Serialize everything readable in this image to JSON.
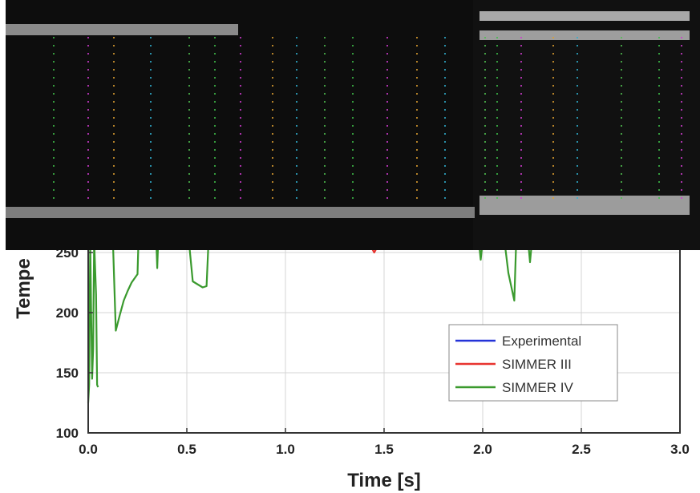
{
  "chart_data": {
    "type": "line",
    "title": "",
    "xlabel": "Time [s]",
    "ylabel": "Tempe",
    "xlim": [
      0.0,
      3.0
    ],
    "ylim": [
      100,
      300
    ],
    "grid": true,
    "legend_position": "bottom-right",
    "x_ticks": [
      "0.0",
      "0.5",
      "1.0",
      "1.5",
      "2.0",
      "2.5",
      "3.0"
    ],
    "y_ticks": [
      "100",
      "150",
      "200",
      "250"
    ],
    "series": [
      {
        "name": "Experimental",
        "color": "#2433d8",
        "x": [],
        "y": []
      },
      {
        "name": "SIMMER III",
        "color": "#e8332f",
        "x": [
          1.44,
          1.45,
          1.46
        ],
        "y": [
          253,
          250,
          253
        ]
      },
      {
        "name": "SIMMER IV",
        "color": "#3a9a2e",
        "segments": [
          {
            "x": [
              0.0,
              0.005,
              0.01,
              0.015,
              0.02,
              0.025,
              0.03,
              0.04,
              0.045,
              0.05
            ],
            "y": [
              125,
              140,
              260,
              200,
              145,
              170,
              260,
              215,
              140,
              138
            ]
          },
          {
            "x": [
              0.125,
              0.14,
              0.16,
              0.18,
              0.2,
              0.22,
              0.25,
              0.255
            ],
            "y": [
              260,
              185,
              198,
              210,
              218,
              225,
              232,
              260
            ]
          },
          {
            "x": [
              0.345,
              0.35,
              0.355
            ],
            "y": [
              260,
              237,
              260
            ]
          },
          {
            "x": [
              0.51,
              0.53,
              0.55,
              0.58,
              0.6,
              0.61
            ],
            "y": [
              260,
              226,
              224,
              221,
              222,
              260
            ]
          },
          {
            "x": [
              1.98,
              1.99,
              2.0
            ],
            "y": [
              260,
              244,
              260
            ]
          },
          {
            "x": [
              2.11,
              2.13,
              2.16,
              2.17
            ],
            "y": [
              260,
              233,
              210,
              260
            ]
          },
          {
            "x": [
              2.23,
              2.24,
              2.25
            ],
            "y": [
              260,
              242,
              260
            ]
          }
        ]
      }
    ]
  }
}
